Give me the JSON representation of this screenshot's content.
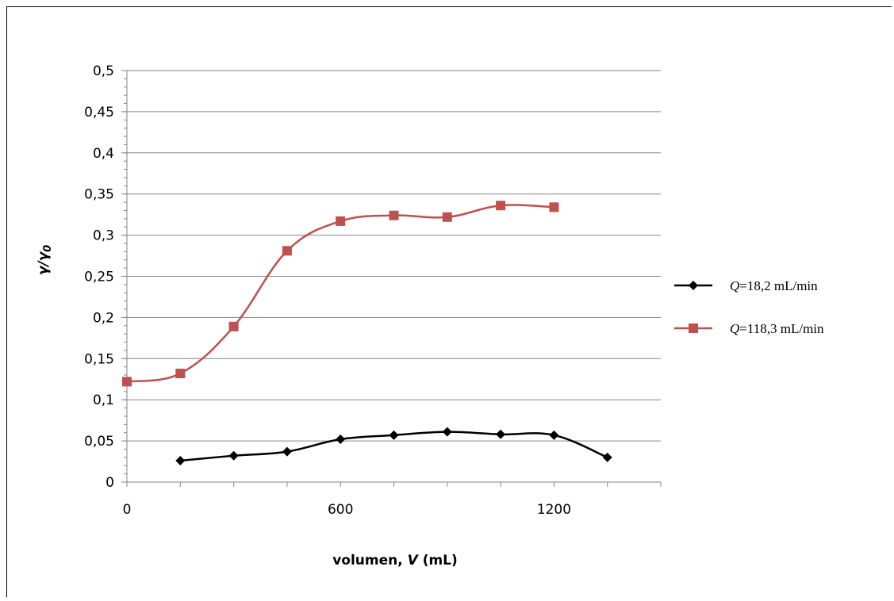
{
  "chart_data": {
    "type": "line",
    "title": "",
    "xlabel": "volumen, V (mL)",
    "xlabel_parts": {
      "prefix": "volumen, ",
      "var": "V",
      "suffix": " (mL)"
    },
    "ylabel": "γ/γ0",
    "ylabel_parts": {
      "num": "γ/γ",
      "sub": "0"
    },
    "xlim": [
      0,
      1500
    ],
    "ylim": [
      0,
      0.5
    ],
    "x_ticks": [
      0,
      600,
      1200
    ],
    "x_tick_labels": [
      "0",
      "600",
      "1200"
    ],
    "y_ticks": [
      0,
      0.05,
      0.1,
      0.15,
      0.2,
      0.25,
      0.3,
      0.35,
      0.4,
      0.45,
      0.5
    ],
    "y_tick_labels": [
      "0",
      "0,05",
      "0,1",
      "0,15",
      "0,2",
      "0,25",
      "0,3",
      "0,35",
      "0,4",
      "0,45",
      "0,5"
    ],
    "grid": {
      "y_major": true,
      "x_major": false
    },
    "legend_position": "right",
    "series": [
      {
        "name": "Q=18,2 mL/min",
        "name_var": "Q",
        "name_rest": "=18,2 mL/min",
        "color": "#000000",
        "marker": "diamond",
        "x": [
          150,
          300,
          450,
          600,
          750,
          900,
          1050,
          1200,
          1350
        ],
        "y": [
          0.026,
          0.032,
          0.037,
          0.052,
          0.057,
          0.061,
          0.058,
          0.057,
          0.03
        ]
      },
      {
        "name": "Q=118,3 mL/min",
        "name_var": "Q",
        "name_rest": "=118,3 mL/min",
        "color": "#c0504d",
        "marker": "square",
        "x": [
          0,
          150,
          300,
          450,
          600,
          750,
          900,
          1050,
          1200
        ],
        "y": [
          0.122,
          0.132,
          0.189,
          0.281,
          0.317,
          0.324,
          0.322,
          0.336,
          0.334
        ]
      }
    ]
  }
}
